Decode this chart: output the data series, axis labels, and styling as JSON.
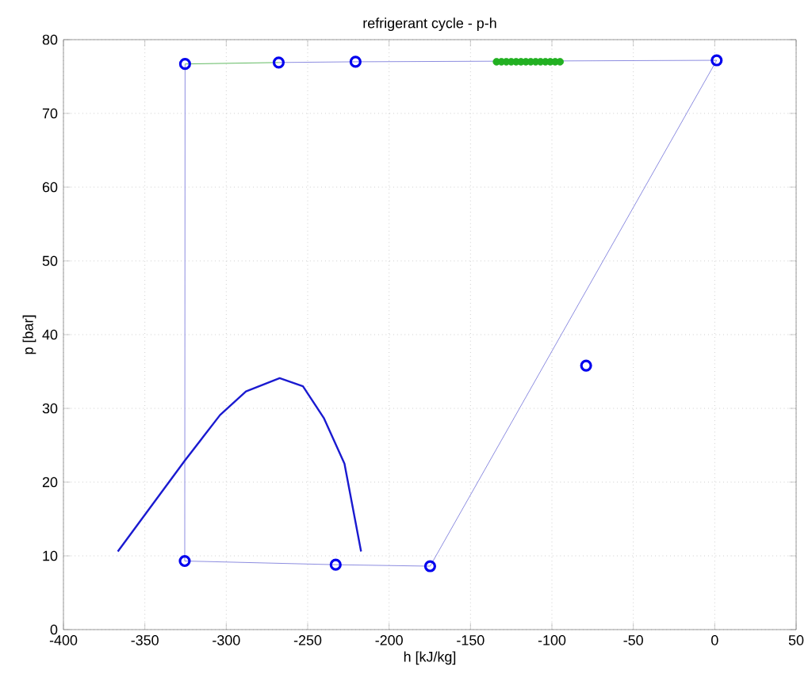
{
  "chart_data": {
    "type": "line",
    "title": "refrigerant cycle - p-h",
    "xlabel": "h [kJ/kg]",
    "ylabel": "p [bar]",
    "xlim": [
      -400,
      50
    ],
    "xticks": [
      -400,
      -350,
      -300,
      -250,
      -200,
      -150,
      -100,
      -50,
      0,
      50
    ],
    "ylim": [
      0,
      80
    ],
    "yticks": [
      0,
      10,
      20,
      30,
      40,
      50,
      60,
      70,
      80
    ],
    "grid": true,
    "series": [
      {
        "color": "#7070d8",
        "marker": "none",
        "x": [
          -267.8,
          -220.6,
          1.2,
          -174.8,
          -232.8,
          -325.5,
          -325.3
        ],
        "values": [
          76.9,
          77.0,
          77.2,
          8.6,
          8.8,
          9.3,
          76.7
        ]
      },
      {
        "color": "#3aa83a",
        "marker": "none",
        "x": [
          -325.3,
          -267.8
        ],
        "values": [
          76.7,
          76.9
        ]
      },
      {
        "type": "scatter",
        "color": "#22b022",
        "marker": "circle",
        "x": [
          -134,
          -131,
          -128,
          -125,
          -122,
          -119,
          -116,
          -113,
          -110,
          -107,
          -104,
          -101,
          -98,
          -95
        ],
        "values": [
          77.0,
          77.0,
          77.0,
          77.0,
          77.0,
          77.0,
          77.0,
          77.0,
          77.0,
          77.0,
          77.0,
          77.0,
          77.0,
          77.0
        ]
      },
      {
        "color": "#1a1ad0",
        "marker": "none",
        "x": [
          -366.6,
          -325.5,
          -303.8,
          -287.9,
          -267.2,
          -252.9,
          -240.1,
          -227.4,
          -217.2
        ],
        "values": [
          10.6,
          22.9,
          29.1,
          32.3,
          34.1,
          33.0,
          28.7,
          22.5,
          10.6
        ]
      },
      {
        "type": "scatter",
        "color": "#0000ee",
        "marker": "circle",
        "x": [
          -325.3,
          -267.8,
          -220.6,
          1.2,
          -79,
          -325.5,
          -232.8,
          -174.8
        ],
        "values": [
          76.7,
          76.9,
          77.0,
          77.2,
          35.8,
          9.3,
          8.8,
          8.6
        ]
      }
    ]
  }
}
